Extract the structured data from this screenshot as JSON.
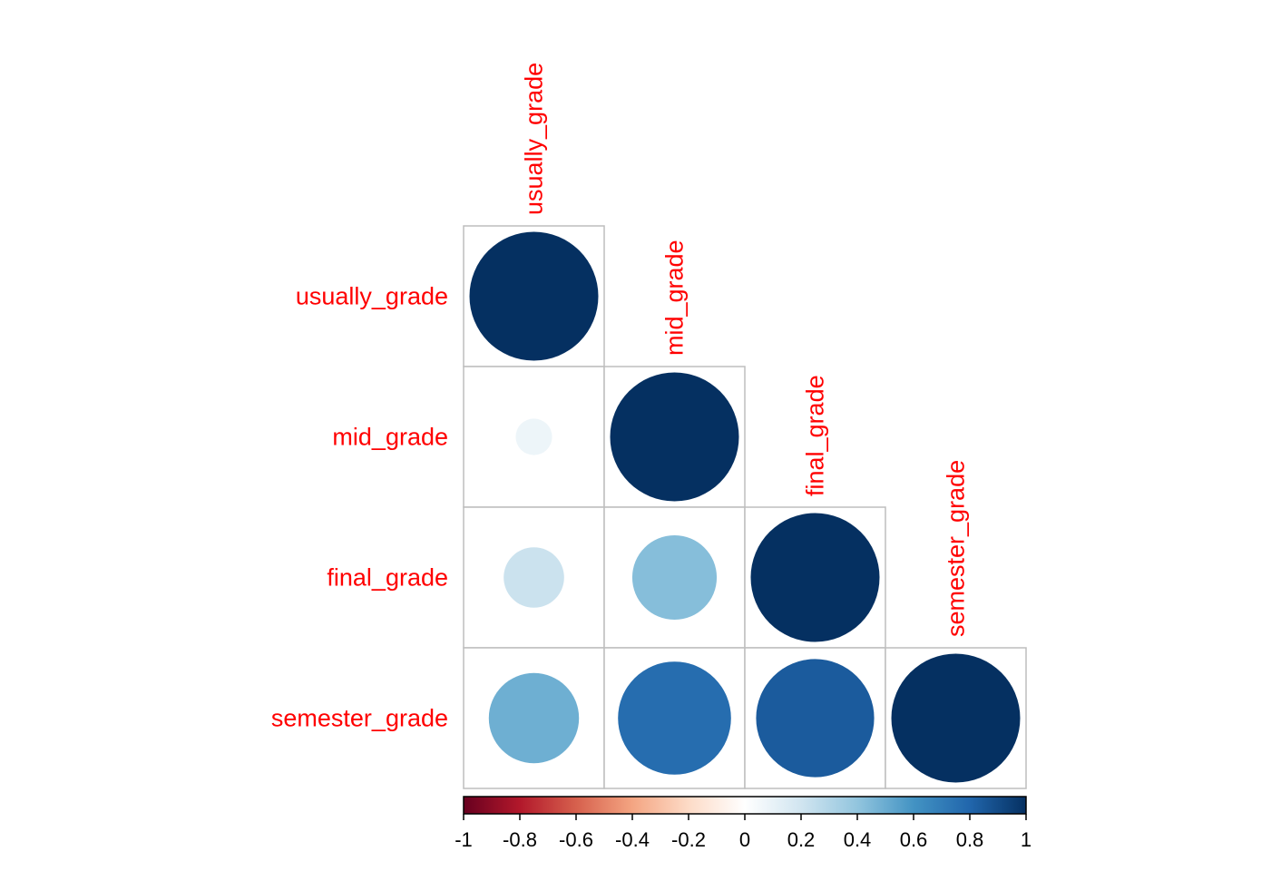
{
  "chart_data": {
    "type": "heatmap",
    "variant": "correlation-circle-lower-triangle",
    "variables": [
      "usually_grade",
      "mid_grade",
      "final_grade",
      "semester_grade"
    ],
    "matrix": [
      [
        1.0,
        null,
        null,
        null
      ],
      [
        0.08,
        1.0,
        null,
        null
      ],
      [
        0.22,
        0.43,
        1.0,
        null
      ],
      [
        0.49,
        0.77,
        0.84,
        1.0
      ]
    ],
    "colorbar": {
      "range": [
        -1,
        1
      ],
      "ticks": [
        "-1",
        "-0.8",
        "-0.6",
        "-0.4",
        "-0.2",
        "0",
        "0.2",
        "0.4",
        "0.6",
        "0.8",
        "1"
      ],
      "position": "bottom",
      "stops": [
        "#67001f",
        "#b2182b",
        "#d6604d",
        "#f4a582",
        "#fddbc7",
        "#ffffff",
        "#d1e5f0",
        "#92c5de",
        "#4393c3",
        "#2166ac",
        "#053061"
      ]
    },
    "label_color": "#ff0000",
    "grid": true
  }
}
